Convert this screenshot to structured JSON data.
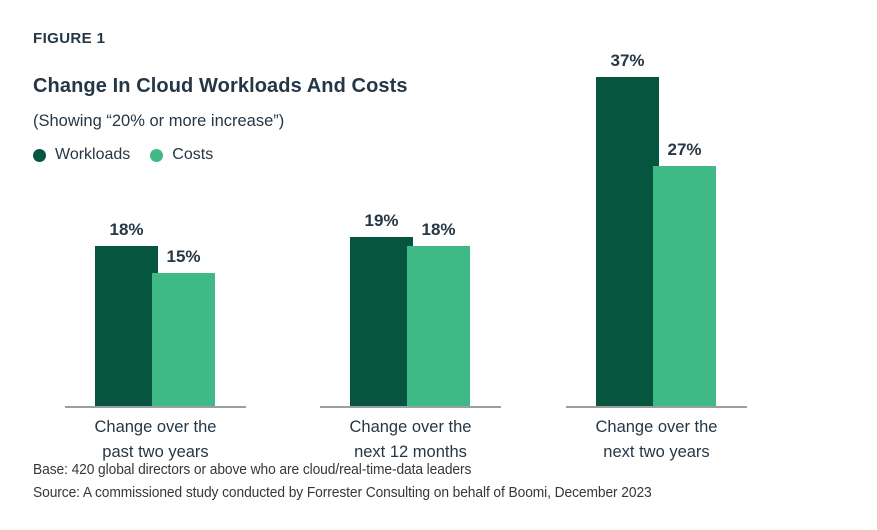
{
  "figure_label": "FIGURE 1",
  "title": "Change In Cloud Workloads And Costs",
  "subtitle": "(Showing “20% or more increase”)",
  "chart_data": {
    "type": "bar",
    "title": "Change In Cloud Workloads And Costs",
    "subtitle": "(Showing “20% or more increase”)",
    "categories": [
      "Change over the\npast two years",
      "Change over the\nnext 12 months",
      "Change over the\nnext two years"
    ],
    "series": [
      {
        "name": "Workloads",
        "color": "#05553F",
        "values": [
          18,
          19,
          37
        ]
      },
      {
        "name": "Costs",
        "color": "#3FBA86",
        "values": [
          15,
          18,
          27
        ]
      }
    ],
    "value_suffix": "%",
    "ylim": [
      0,
      40
    ],
    "grid": false,
    "legend_position": "top-left",
    "axis_line_color": "#9aa0a2",
    "label_color": "#253746"
  },
  "footer": {
    "base": "Base: 420 global directors or above who are cloud/real-time-data leaders",
    "source": "Source: A commissioned study conducted by Forrester Consulting on behalf of Boomi, December 2023"
  }
}
